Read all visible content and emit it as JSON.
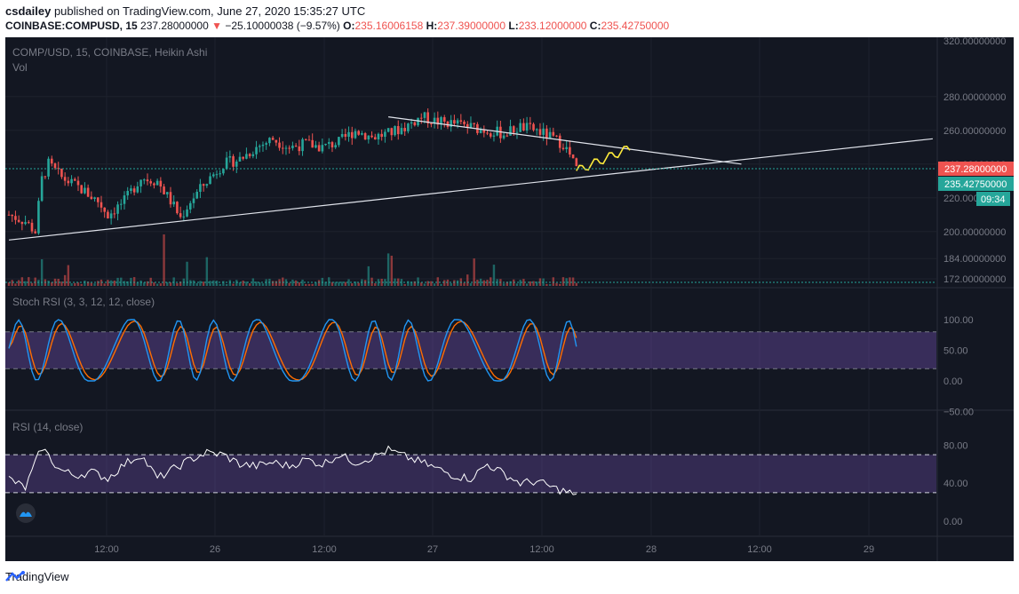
{
  "header": {
    "user": "csdailey",
    "published": "published on TradingView.com, June 27, 2020 15:35:27 UTC",
    "symbol": "COINBASE:COMPUSD, 15",
    "price": "237.28000000",
    "change_arrow": "▼",
    "change": "−25.10000038 (−9.57%)",
    "o_label": "O:",
    "o_value": "235.16006158",
    "h_label": "H:",
    "h_value": "237.39000000",
    "l_label": "L:",
    "l_value": "233.12000000",
    "c_label": "C:",
    "c_value": "235.42750000"
  },
  "footer": {
    "brand": "TradingView"
  },
  "colors": {
    "up": "#26a69a",
    "down": "#ef5350",
    "background": "#131722",
    "rsi_band": "#7e57c2",
    "k_line": "#2196f3",
    "d_line": "#ff6d00",
    "projection": "#ffeb3b"
  },
  "chart_data": [
    {
      "type": "candlestick",
      "title": "COMP/USD, 15, COINBASE, Heikin Ashi",
      "subtitle": "Vol",
      "y_ticks": [
        "320.00000000",
        "280.00000000",
        "260.00000000",
        "240.00000000",
        "220.00000000",
        "200.00000000",
        "184.00000000",
        "172.00000000"
      ],
      "x_ticks": [
        "12:00",
        "26",
        "12:00",
        "27",
        "12:00",
        "28",
        "12:00",
        "29"
      ],
      "price_labels": {
        "last": "237.28000000",
        "close": "235.42750000",
        "countdown": "09:34"
      },
      "approx_path": [
        [
          0,
          210
        ],
        [
          5,
          206
        ],
        [
          8,
          200
        ],
        [
          10,
          231
        ],
        [
          12,
          240
        ],
        [
          16,
          232
        ],
        [
          22,
          225
        ],
        [
          27,
          218
        ],
        [
          30,
          210
        ],
        [
          35,
          218
        ],
        [
          40,
          232
        ],
        [
          45,
          230
        ],
        [
          50,
          215
        ],
        [
          52,
          208
        ],
        [
          55,
          218
        ],
        [
          60,
          230
        ],
        [
          65,
          240
        ],
        [
          70,
          243
        ],
        [
          75,
          250
        ],
        [
          80,
          255
        ],
        [
          85,
          250
        ],
        [
          90,
          252
        ],
        [
          95,
          250
        ],
        [
          100,
          253
        ],
        [
          105,
          260
        ],
        [
          110,
          256
        ],
        [
          115,
          258
        ],
        [
          120,
          262
        ],
        [
          125,
          268
        ],
        [
          130,
          265
        ],
        [
          135,
          264
        ],
        [
          140,
          262
        ],
        [
          145,
          260
        ],
        [
          150,
          258
        ],
        [
          155,
          262
        ],
        [
          160,
          260
        ],
        [
          165,
          255
        ],
        [
          168,
          252
        ],
        [
          170,
          245
        ],
        [
          172,
          237
        ]
      ],
      "trendlines": [
        {
          "name": "resistance",
          "from": [
            115,
            268
          ],
          "to": [
            222,
            240
          ]
        },
        {
          "name": "support",
          "from": [
            0,
            195
          ],
          "to": [
            280,
            255
          ]
        }
      ]
    },
    {
      "type": "line",
      "title": "Stoch RSI (3, 3, 12, 12, close)",
      "y_ticks": [
        "100.00",
        "50.00",
        "0.00",
        "−50.00"
      ],
      "band": [
        20,
        80
      ]
    },
    {
      "type": "line",
      "title": "RSI (14, close)",
      "y_ticks": [
        "80.00",
        "40.00",
        "0.00"
      ],
      "band": [
        30,
        70
      ],
      "approx_path": [
        [
          0,
          45
        ],
        [
          5,
          35
        ],
        [
          10,
          78
        ],
        [
          15,
          55
        ],
        [
          20,
          48
        ],
        [
          25,
          52
        ],
        [
          30,
          45
        ],
        [
          35,
          60
        ],
        [
          40,
          70
        ],
        [
          45,
          45
        ],
        [
          50,
          55
        ],
        [
          55,
          65
        ],
        [
          60,
          72
        ],
        [
          65,
          70
        ],
        [
          70,
          60
        ],
        [
          75,
          58
        ],
        [
          80,
          62
        ],
        [
          85,
          58
        ],
        [
          90,
          65
        ],
        [
          95,
          60
        ],
        [
          100,
          70
        ],
        [
          105,
          62
        ],
        [
          110,
          67
        ],
        [
          115,
          75
        ],
        [
          120,
          68
        ],
        [
          125,
          62
        ],
        [
          130,
          55
        ],
        [
          135,
          48
        ],
        [
          140,
          45
        ],
        [
          145,
          60
        ],
        [
          150,
          50
        ],
        [
          155,
          40
        ],
        [
          160,
          42
        ],
        [
          165,
          35
        ],
        [
          170,
          30
        ],
        [
          172,
          25
        ]
      ]
    }
  ]
}
